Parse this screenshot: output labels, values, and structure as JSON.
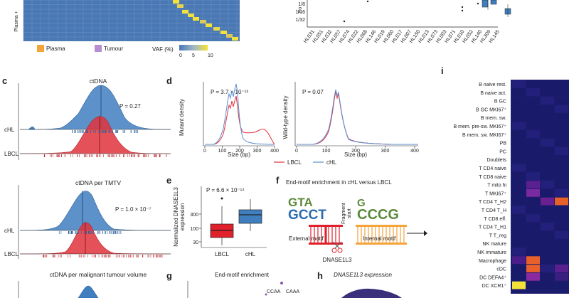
{
  "panel_labels": {
    "c": "c",
    "d": "d",
    "e": "e",
    "f": "f",
    "g": "g",
    "h": "h",
    "i": "i"
  },
  "heatmap_top": {
    "row_label": "Plasma +",
    "legend_plasma": "Plasma",
    "legend_tumour": "Tumour",
    "vaf_label": "VAF (%)",
    "vaf_ticks": [
      "0",
      "5",
      "10"
    ],
    "colors": {
      "low": "#4a78b4",
      "high": "#f4e23a",
      "plasma": "#f5a43a",
      "tumour": "#b58fd1"
    }
  },
  "top_right": {
    "ylabel": "Fo",
    "yticks": [
      "1/8",
      "1/16",
      "1/32"
    ],
    "xticks": [
      "HL031",
      "HL051",
      "HL032",
      "HL057",
      "HL074",
      "HL022",
      "HL068",
      "HL146",
      "HL019",
      "HL060",
      "HL017",
      "HL007",
      "HL150",
      "HL013",
      "HL073",
      "HL003",
      "HL071",
      "HL010",
      "HL052",
      "HL140",
      "HL309",
      "HL145"
    ]
  },
  "panel_c": {
    "plots": [
      {
        "title": "ctDNA",
        "p": "P = 0.27"
      },
      {
        "title": "ctDNA per TMTV",
        "p": "P = 1.0 × 10⁻⁷"
      },
      {
        "title": "ctDNA per malignant tumour volume"
      }
    ],
    "groups": [
      "cHL",
      "LBCL"
    ],
    "colors": {
      "cHL": "#3f7fc0",
      "LBCL": "#e0323c"
    }
  },
  "panel_d": {
    "left": {
      "ylabel": "Mutant density",
      "p": "P = 3.7 × 10⁻¹³"
    },
    "right": {
      "ylabel": "Wild-type density",
      "p": "P = 0.07"
    },
    "xlabel": "Size (bp)",
    "xticks": [
      "0",
      "100",
      "200",
      "300",
      "400"
    ],
    "legend": [
      "LBCL",
      "cHL"
    ]
  },
  "panel_e": {
    "p": "P = 6.6 × 10⁻¹⁴",
    "ylabel_line1": "Normalized DNASE1L3",
    "ylabel_line2": "expression",
    "yticks": [
      "300",
      "100",
      "30"
    ],
    "categories": [
      "LBCL",
      "cHL"
    ]
  },
  "panel_f": {
    "title": "End-motif enrichment in cHL versus LBCL",
    "external": "External motif",
    "internal": "Internal motif",
    "fragment": "Fragment",
    "start": "start",
    "enzyme": "DNASE1L3",
    "logo_left_top": "GTA",
    "logo_left_bottom": "GCCT",
    "logo_right_top": "G",
    "logo_right_bottom": "CCCG"
  },
  "panel_g": {
    "title": "End-motif enrichment",
    "motifs": [
      "CCAA",
      "CAAA"
    ]
  },
  "panel_h": {
    "title": "DNASE1L3 expression"
  },
  "panel_i": {
    "rows": [
      "B naive rest.",
      "B naive act.",
      "B GC",
      "B GC MKI67⁺",
      "B mem. sw.",
      "B mem. pre-sw. MKI67⁺",
      "B mem. sw. MKI67⁺",
      "PB",
      "PC",
      "Doublets",
      "T CD4 naive",
      "T CD8 naive",
      "T mito hi",
      "T MKI67⁺",
      "T CD4 T_H2",
      "T CD4 T_H",
      "T CD8 eff.",
      "T CD4 T_H1",
      "T T_reg",
      "NK mature",
      "NK immature",
      "Macrophage",
      "cDC",
      "DC DEFA4⁺",
      "DC XCR1⁺"
    ]
  }
}
